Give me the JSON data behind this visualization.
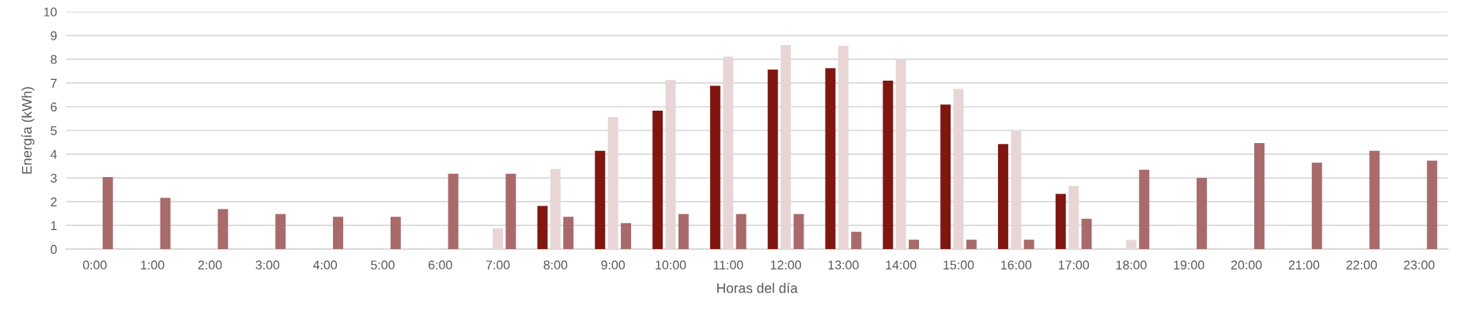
{
  "chart_data": {
    "type": "bar",
    "xlabel": "Horas del día",
    "ylabel": "Energía (kWh)",
    "categories": [
      "0:00",
      "1:00",
      "2:00",
      "3:00",
      "4:00",
      "5:00",
      "6:00",
      "7:00",
      "8:00",
      "9:00",
      "10:00",
      "11:00",
      "12:00",
      "13:00",
      "14:00",
      "15:00",
      "16:00",
      "17:00",
      "18:00",
      "19:00",
      "20:00",
      "21:00",
      "22:00",
      "23:00"
    ],
    "series": [
      {
        "color": "#7f1710",
        "values": [
          0,
          0,
          0,
          0,
          0,
          0,
          0,
          0,
          1.82,
          4.14,
          5.83,
          6.88,
          7.56,
          7.62,
          7.1,
          6.09,
          4.43,
          2.33,
          0,
          0,
          0,
          0,
          0,
          0
        ]
      },
      {
        "color": "#e8d6d7",
        "values": [
          0,
          0,
          0,
          0,
          0,
          0,
          0.04,
          0.88,
          3.38,
          5.57,
          7.12,
          8.11,
          8.6,
          8.56,
          7.98,
          6.75,
          4.97,
          2.66,
          0.39,
          0,
          0,
          0,
          0,
          0
        ]
      },
      {
        "color": "#a86a6b",
        "values": [
          3.04,
          2.16,
          1.69,
          1.48,
          1.36,
          1.36,
          3.18,
          3.18,
          1.36,
          1.1,
          1.48,
          1.48,
          1.48,
          0.73,
          0.4,
          0.4,
          0.4,
          1.28,
          3.34,
          3.0,
          4.47,
          3.64,
          4.14,
          3.73
        ]
      }
    ],
    "ylim": [
      0,
      10
    ],
    "yticks": [
      0,
      1,
      2,
      3,
      4,
      5,
      6,
      7,
      8,
      9,
      10
    ],
    "grid": "y"
  }
}
